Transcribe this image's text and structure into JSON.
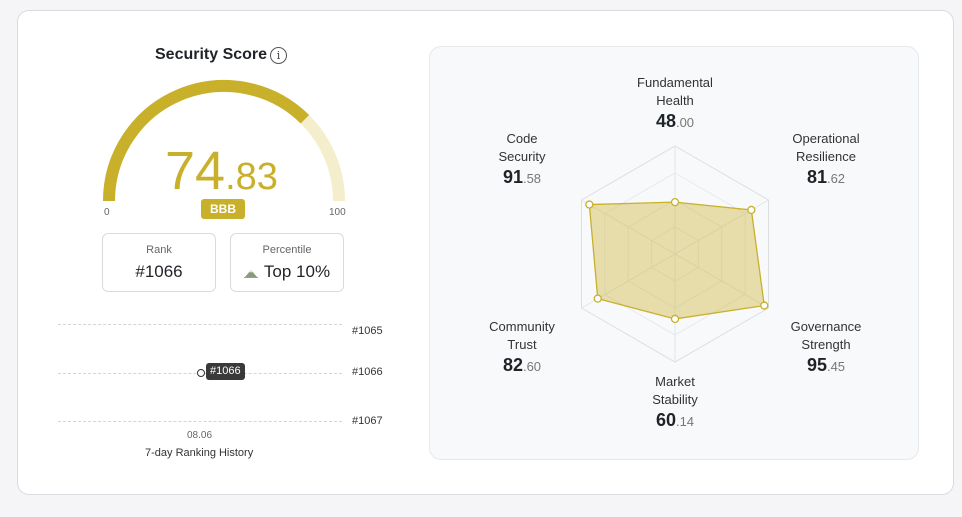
{
  "header": {
    "title": "Security Score",
    "info_icon": "info-icon"
  },
  "gauge": {
    "score_int": "74",
    "score_dec": ".83",
    "score_value": 74.83,
    "min_label": "0",
    "max_label": "100",
    "min": 0,
    "max": 100,
    "rating": "BBB",
    "fill_color": "#c9b02a",
    "track_color": "#f4eecd"
  },
  "stats": {
    "rank_label": "Rank",
    "rank_value": "#1066",
    "percentile_label": "Percentile",
    "percentile_value": "Top 10%",
    "percentile_icon": "mountain-icon"
  },
  "history": {
    "rows": [
      "#1065",
      "#1066",
      "#1067"
    ],
    "marker_label": "#1066",
    "date": "08.06",
    "caption": "7-day Ranking History"
  },
  "radar": {
    "fill_color": "#c9b02a",
    "axes": [
      {
        "label1": "Fundamental",
        "label2": "Health",
        "int": "48",
        "dec": ".00",
        "value": 48.0
      },
      {
        "label1": "Operational",
        "label2": "Resilience",
        "int": "81",
        "dec": ".62",
        "value": 81.62
      },
      {
        "label1": "Governance",
        "label2": "Strength",
        "int": "95",
        "dec": ".45",
        "value": 95.45
      },
      {
        "label1": "Market",
        "label2": "Stability",
        "int": "60",
        "dec": ".14",
        "value": 60.14
      },
      {
        "label1": "Community",
        "label2": "Trust",
        "int": "82",
        "dec": ".60",
        "value": 82.6
      },
      {
        "label1": "Code",
        "label2": "Security",
        "int": "91",
        "dec": ".58",
        "value": 91.58
      }
    ]
  }
}
